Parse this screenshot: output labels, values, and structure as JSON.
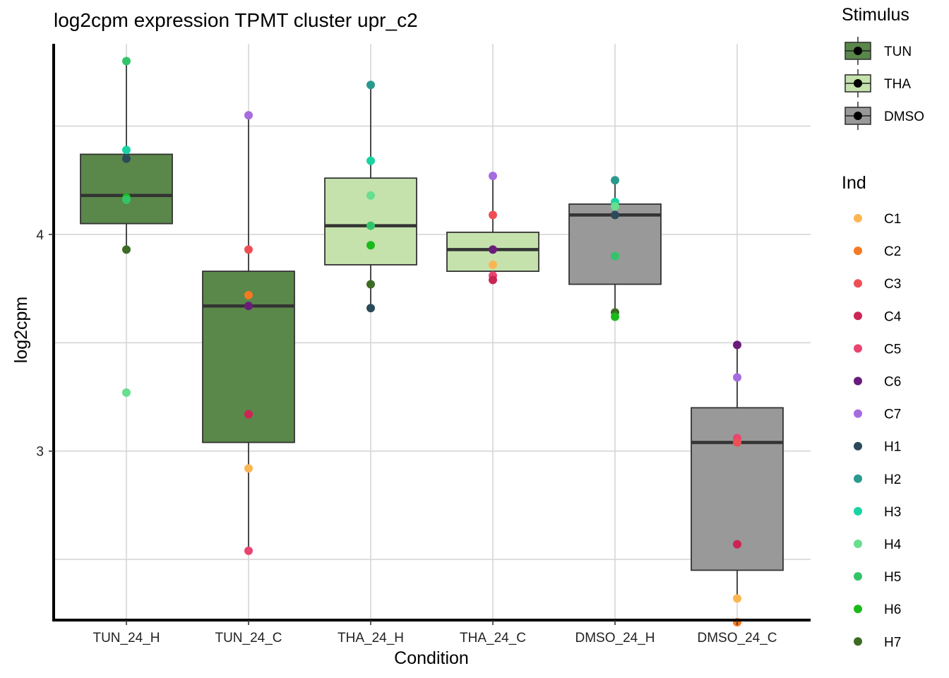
{
  "chart_data": {
    "type": "boxplot",
    "title": "log2cpm expression TPMT cluster upr_c2",
    "xlabel": "Condition",
    "ylabel": "log2cpm",
    "ylim": [
      2.22,
      4.88
    ],
    "yticks": [
      3,
      4
    ],
    "ygrid_minor": [
      2.5,
      3.5,
      4.5
    ],
    "categories": [
      "TUN_24_H",
      "TUN_24_C",
      "THA_24_H",
      "THA_24_C",
      "DMSO_24_H",
      "DMSO_24_C"
    ],
    "boxes": [
      {
        "condition": "TUN_24_H",
        "stimulus": "TUN",
        "whisker_low": 3.93,
        "q1": 4.05,
        "median": 4.18,
        "q3": 4.37,
        "whisker_high": 4.8
      },
      {
        "condition": "TUN_24_C",
        "stimulus": "TUN",
        "whisker_low": 2.54,
        "q1": 3.04,
        "median": 3.67,
        "q3": 3.83,
        "whisker_high": 4.55
      },
      {
        "condition": "THA_24_H",
        "stimulus": "THA",
        "whisker_low": 3.66,
        "q1": 3.86,
        "median": 4.04,
        "q3": 4.26,
        "whisker_high": 4.69
      },
      {
        "condition": "THA_24_C",
        "stimulus": "THA",
        "whisker_low": 3.79,
        "q1": 3.83,
        "median": 3.93,
        "q3": 4.01,
        "whisker_high": 4.26
      },
      {
        "condition": "DMSO_24_H",
        "stimulus": "DMSO",
        "whisker_low": 3.62,
        "q1": 3.77,
        "median": 4.09,
        "q3": 4.14,
        "whisker_high": 4.25
      },
      {
        "condition": "DMSO_24_C",
        "stimulus": "DMSO",
        "whisker_low": 2.32,
        "q1": 2.45,
        "median": 3.04,
        "q3": 3.2,
        "whisker_high": 3.49
      }
    ],
    "points": [
      {
        "condition": "TUN_24_H",
        "ind": "H5",
        "value": 4.8
      },
      {
        "condition": "TUN_24_H",
        "ind": "H3",
        "value": 4.39
      },
      {
        "condition": "TUN_24_H",
        "ind": "H1",
        "value": 4.35
      },
      {
        "condition": "TUN_24_H",
        "ind": "H6",
        "value": 4.17
      },
      {
        "condition": "TUN_24_H",
        "ind": "H5",
        "value": 4.16
      },
      {
        "condition": "TUN_24_H",
        "ind": "H7",
        "value": 3.93
      },
      {
        "condition": "TUN_24_H",
        "ind": "H4",
        "value": 3.27
      },
      {
        "condition": "TUN_24_C",
        "ind": "C7",
        "value": 4.55
      },
      {
        "condition": "TUN_24_C",
        "ind": "C3",
        "value": 3.93
      },
      {
        "condition": "TUN_24_C",
        "ind": "C2",
        "value": 3.72
      },
      {
        "condition": "TUN_24_C",
        "ind": "C6",
        "value": 3.67
      },
      {
        "condition": "TUN_24_C",
        "ind": "C4",
        "value": 3.17
      },
      {
        "condition": "TUN_24_C",
        "ind": "C1",
        "value": 2.92
      },
      {
        "condition": "TUN_24_C",
        "ind": "C5",
        "value": 2.54
      },
      {
        "condition": "THA_24_H",
        "ind": "H2",
        "value": 4.69
      },
      {
        "condition": "THA_24_H",
        "ind": "H3",
        "value": 4.34
      },
      {
        "condition": "THA_24_H",
        "ind": "H4",
        "value": 4.18
      },
      {
        "condition": "THA_24_H",
        "ind": "H5",
        "value": 4.04
      },
      {
        "condition": "THA_24_H",
        "ind": "H6",
        "value": 3.95
      },
      {
        "condition": "THA_24_H",
        "ind": "H7",
        "value": 3.77
      },
      {
        "condition": "THA_24_H",
        "ind": "H1",
        "value": 3.66
      },
      {
        "condition": "THA_24_C",
        "ind": "C7",
        "value": 4.27
      },
      {
        "condition": "THA_24_C",
        "ind": "C3",
        "value": 4.09
      },
      {
        "condition": "THA_24_C",
        "ind": "C6",
        "value": 3.93
      },
      {
        "condition": "THA_24_C",
        "ind": "C1",
        "value": 3.86
      },
      {
        "condition": "THA_24_C",
        "ind": "C5",
        "value": 3.81
      },
      {
        "condition": "THA_24_C",
        "ind": "C4",
        "value": 3.79
      },
      {
        "condition": "DMSO_24_H",
        "ind": "H2",
        "value": 4.25
      },
      {
        "condition": "DMSO_24_H",
        "ind": "H3",
        "value": 4.15
      },
      {
        "condition": "DMSO_24_H",
        "ind": "H4",
        "value": 4.13
      },
      {
        "condition": "DMSO_24_H",
        "ind": "H1",
        "value": 4.09
      },
      {
        "condition": "DMSO_24_H",
        "ind": "H5",
        "value": 3.9
      },
      {
        "condition": "DMSO_24_H",
        "ind": "H7",
        "value": 3.64
      },
      {
        "condition": "DMSO_24_H",
        "ind": "H6",
        "value": 3.62
      },
      {
        "condition": "DMSO_24_C",
        "ind": "C6",
        "value": 3.49
      },
      {
        "condition": "DMSO_24_C",
        "ind": "C7",
        "value": 3.34
      },
      {
        "condition": "DMSO_24_C",
        "ind": "C5",
        "value": 3.06
      },
      {
        "condition": "DMSO_24_C",
        "ind": "C3",
        "value": 3.04
      },
      {
        "condition": "DMSO_24_C",
        "ind": "C4",
        "value": 2.57
      },
      {
        "condition": "DMSO_24_C",
        "ind": "C1",
        "value": 2.32
      },
      {
        "condition": "DMSO_24_C",
        "ind": "C2",
        "value": 2.21
      }
    ],
    "legend_stimulus": {
      "title": "Stimulus",
      "items": [
        {
          "label": "TUN",
          "color": "#5a874a"
        },
        {
          "label": "THA",
          "color": "#c5e2ad"
        },
        {
          "label": "DMSO",
          "color": "#999999"
        }
      ]
    },
    "legend_ind": {
      "title": "Ind",
      "items": [
        {
          "label": "C1",
          "color": "#fbb652"
        },
        {
          "label": "C2",
          "color": "#f47a22"
        },
        {
          "label": "C3",
          "color": "#ee4f55"
        },
        {
          "label": "C4",
          "color": "#cc2553"
        },
        {
          "label": "C5",
          "color": "#ea4470"
        },
        {
          "label": "C6",
          "color": "#6a1c7a"
        },
        {
          "label": "C7",
          "color": "#a66bdf"
        },
        {
          "label": "H1",
          "color": "#2b4a5a"
        },
        {
          "label": "H2",
          "color": "#2a9a8e"
        },
        {
          "label": "H3",
          "color": "#19d3a2"
        },
        {
          "label": "H4",
          "color": "#68de8f"
        },
        {
          "label": "H5",
          "color": "#33c46a"
        },
        {
          "label": "H6",
          "color": "#1bba1b"
        },
        {
          "label": "H7",
          "color": "#3d6b26"
        }
      ]
    }
  }
}
